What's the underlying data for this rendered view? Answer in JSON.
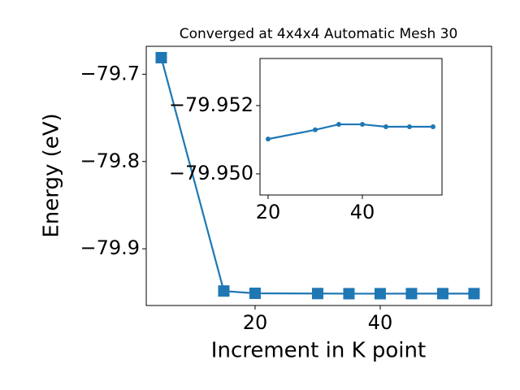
{
  "chart_data": [
    {
      "type": "line",
      "title": "Converged at 4x4x4 Automatic Mesh 30",
      "xlabel": "Increment in K point",
      "ylabel": "Energy (eV)",
      "x": [
        5,
        15,
        20,
        30,
        35,
        40,
        45,
        50,
        55
      ],
      "values": [
        -79.681,
        -79.9484,
        -79.95102,
        -79.95129,
        -79.95145,
        -79.95145,
        -79.95138,
        -79.95138,
        -79.95138
      ],
      "color": "#1f77b4",
      "marker": "square",
      "xlim": [
        2.6,
        57.8
      ],
      "ylim": [
        -79.965,
        -79.668
      ],
      "xticks": [
        20,
        40
      ],
      "yticks": [
        {
          "value": -79.9,
          "label": "−79.9"
        },
        {
          "value": -79.8,
          "label": "−79.8"
        },
        {
          "value": -79.7,
          "label": "−79.7"
        }
      ]
    },
    {
      "type": "line",
      "x": [
        20,
        30,
        35,
        40,
        45,
        50,
        55
      ],
      "values": [
        -79.95102,
        -79.95129,
        -79.95145,
        -79.95145,
        -79.95138,
        -79.95138,
        -79.95138
      ],
      "color": "#1f77b4",
      "marker": "circle",
      "xlim": [
        18.28,
        56.9
      ],
      "ylim": [
        -79.94938,
        -79.95338
      ],
      "xticks": [
        20,
        40
      ],
      "yticks": [
        {
          "value": -79.95,
          "label": "−79.950"
        },
        {
          "value": -79.952,
          "label": "−79.952"
        }
      ]
    }
  ]
}
